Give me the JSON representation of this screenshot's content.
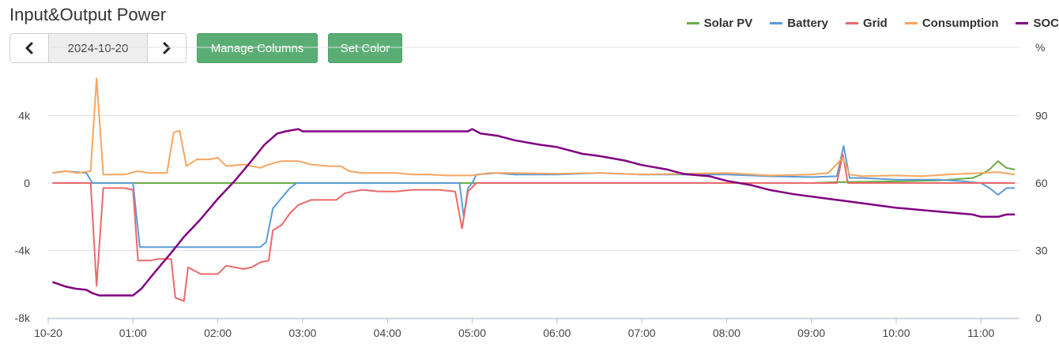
{
  "header": {
    "title": "Input&Output Power",
    "date": "2024-10-20",
    "manage_columns_label": "Manage Columns",
    "set_color_label": "Set Color"
  },
  "chart_data": {
    "type": "line",
    "title": "Input&Output Power",
    "legend_position": "top-right",
    "grid": true,
    "y_left": {
      "unit": "",
      "ylim": [
        -8000,
        6000
      ],
      "ticks": [
        "4k",
        "0",
        "-4k",
        "-8k"
      ],
      "tick_values": [
        4000,
        0,
        -4000,
        -8000
      ]
    },
    "y_right": {
      "unit": "%",
      "ylim": [
        0,
        120
      ],
      "ticks": [
        "90",
        "60",
        "30",
        "0"
      ],
      "tick_values": [
        90,
        60,
        30,
        0
      ]
    },
    "x": {
      "xlim": [
        0,
        11.65
      ],
      "ticks": [
        "10-20",
        "01:00",
        "02:00",
        "03:00",
        "04:00",
        "05:00",
        "06:00",
        "07:00",
        "08:00",
        "09:00",
        "10:00",
        "11:00"
      ],
      "tick_values": [
        0,
        1,
        2,
        3,
        4,
        5,
        6,
        7,
        8,
        9,
        10,
        11
      ]
    },
    "series": [
      {
        "name": "Solar PV",
        "color": "#6aaa47",
        "axis": "left",
        "points": [
          [
            0.05,
            0
          ],
          [
            9.0,
            0
          ],
          [
            9.3,
            50
          ],
          [
            10.0,
            100
          ],
          [
            10.5,
            150
          ],
          [
            10.9,
            300
          ],
          [
            11.0,
            500
          ],
          [
            11.1,
            800
          ],
          [
            11.2,
            1300
          ],
          [
            11.3,
            900
          ],
          [
            11.4,
            800
          ]
        ]
      },
      {
        "name": "Battery",
        "color": "#5b9bd5",
        "axis": "left",
        "points": [
          [
            0.05,
            600
          ],
          [
            0.2,
            700
          ],
          [
            0.45,
            600
          ],
          [
            0.52,
            0
          ],
          [
            1.0,
            0
          ],
          [
            1.08,
            -3800
          ],
          [
            1.5,
            -3800
          ],
          [
            2.0,
            -3800
          ],
          [
            2.5,
            -3800
          ],
          [
            2.57,
            -3500
          ],
          [
            2.65,
            -1500
          ],
          [
            2.75,
            -900
          ],
          [
            2.85,
            -300
          ],
          [
            2.93,
            0
          ],
          [
            3.5,
            0
          ],
          [
            4.0,
            0
          ],
          [
            4.5,
            0
          ],
          [
            4.85,
            0
          ],
          [
            4.9,
            -2000
          ],
          [
            4.95,
            -300
          ],
          [
            5.0,
            0
          ],
          [
            5.05,
            500
          ],
          [
            5.3,
            600
          ],
          [
            5.5,
            500
          ],
          [
            6.0,
            500
          ],
          [
            6.5,
            600
          ],
          [
            7.0,
            500
          ],
          [
            7.5,
            500
          ],
          [
            8.0,
            500
          ],
          [
            8.5,
            400
          ],
          [
            9.0,
            350
          ],
          [
            9.3,
            400
          ],
          [
            9.38,
            2200
          ],
          [
            9.45,
            300
          ],
          [
            9.6,
            300
          ],
          [
            10.0,
            200
          ],
          [
            10.5,
            200
          ],
          [
            10.8,
            100
          ],
          [
            11.0,
            0
          ],
          [
            11.1,
            -300
          ],
          [
            11.2,
            -700
          ],
          [
            11.3,
            -300
          ],
          [
            11.4,
            -300
          ]
        ]
      },
      {
        "name": "Grid",
        "color": "#e96a6a",
        "axis": "left",
        "points": [
          [
            0.05,
            0
          ],
          [
            0.5,
            0
          ],
          [
            0.57,
            -6100
          ],
          [
            0.65,
            -300
          ],
          [
            0.9,
            -300
          ],
          [
            1.0,
            -400
          ],
          [
            1.06,
            -4600
          ],
          [
            1.2,
            -4600
          ],
          [
            1.3,
            -4500
          ],
          [
            1.45,
            -4500
          ],
          [
            1.5,
            -6800
          ],
          [
            1.6,
            -7000
          ],
          [
            1.65,
            -5000
          ],
          [
            1.8,
            -5400
          ],
          [
            2.0,
            -5400
          ],
          [
            2.1,
            -4900
          ],
          [
            2.3,
            -5100
          ],
          [
            2.4,
            -5000
          ],
          [
            2.5,
            -4700
          ],
          [
            2.6,
            -4600
          ],
          [
            2.65,
            -2800
          ],
          [
            2.75,
            -2500
          ],
          [
            2.85,
            -1800
          ],
          [
            2.95,
            -1300
          ],
          [
            3.1,
            -1000
          ],
          [
            3.3,
            -1000
          ],
          [
            3.4,
            -1000
          ],
          [
            3.5,
            -600
          ],
          [
            3.7,
            -400
          ],
          [
            3.9,
            -500
          ],
          [
            4.1,
            -500
          ],
          [
            4.3,
            -400
          ],
          [
            4.6,
            -400
          ],
          [
            4.8,
            -500
          ],
          [
            4.88,
            -2700
          ],
          [
            4.95,
            -500
          ],
          [
            5.05,
            0
          ],
          [
            6.0,
            0
          ],
          [
            7.0,
            0
          ],
          [
            8.0,
            0
          ],
          [
            9.0,
            0
          ],
          [
            9.3,
            0
          ],
          [
            9.37,
            1700
          ],
          [
            9.43,
            0
          ],
          [
            10.0,
            0
          ],
          [
            11.0,
            0
          ],
          [
            11.4,
            0
          ]
        ]
      },
      {
        "name": "Consumption",
        "color": "#f7a560",
        "axis": "left",
        "points": [
          [
            0.05,
            600
          ],
          [
            0.2,
            700
          ],
          [
            0.35,
            600
          ],
          [
            0.5,
            700
          ],
          [
            0.57,
            6200
          ],
          [
            0.65,
            500
          ],
          [
            0.9,
            500
          ],
          [
            1.05,
            700
          ],
          [
            1.2,
            600
          ],
          [
            1.4,
            600
          ],
          [
            1.48,
            3000
          ],
          [
            1.55,
            3100
          ],
          [
            1.63,
            1000
          ],
          [
            1.75,
            1400
          ],
          [
            1.9,
            1400
          ],
          [
            2.0,
            1500
          ],
          [
            2.1,
            1000
          ],
          [
            2.3,
            1100
          ],
          [
            2.5,
            900
          ],
          [
            2.6,
            1100
          ],
          [
            2.75,
            1300
          ],
          [
            2.95,
            1300
          ],
          [
            3.1,
            1100
          ],
          [
            3.3,
            1000
          ],
          [
            3.45,
            1000
          ],
          [
            3.55,
            700
          ],
          [
            3.7,
            600
          ],
          [
            3.9,
            600
          ],
          [
            4.1,
            600
          ],
          [
            4.3,
            500
          ],
          [
            4.5,
            500
          ],
          [
            4.7,
            450
          ],
          [
            4.9,
            450
          ],
          [
            5.0,
            450
          ],
          [
            5.2,
            600
          ],
          [
            5.5,
            600
          ],
          [
            6.0,
            550
          ],
          [
            6.5,
            600
          ],
          [
            7.0,
            500
          ],
          [
            7.5,
            550
          ],
          [
            8.0,
            600
          ],
          [
            8.5,
            450
          ],
          [
            9.0,
            500
          ],
          [
            9.2,
            600
          ],
          [
            9.37,
            1500
          ],
          [
            9.45,
            500
          ],
          [
            9.6,
            400
          ],
          [
            10.0,
            450
          ],
          [
            10.3,
            400
          ],
          [
            10.6,
            500
          ],
          [
            11.0,
            600
          ],
          [
            11.2,
            650
          ],
          [
            11.4,
            500
          ]
        ]
      },
      {
        "name": "SOC",
        "color": "#800080",
        "axis": "right",
        "points": [
          [
            0.05,
            16
          ],
          [
            0.2,
            14
          ],
          [
            0.32,
            13
          ],
          [
            0.45,
            12.5
          ],
          [
            0.52,
            11
          ],
          [
            0.6,
            10
          ],
          [
            0.7,
            10
          ],
          [
            1.0,
            10
          ],
          [
            1.1,
            13
          ],
          [
            1.25,
            20
          ],
          [
            1.45,
            29
          ],
          [
            1.6,
            36
          ],
          [
            1.8,
            44
          ],
          [
            2.0,
            53
          ],
          [
            2.2,
            61
          ],
          [
            2.4,
            70
          ],
          [
            2.55,
            77
          ],
          [
            2.7,
            82
          ],
          [
            2.8,
            83
          ],
          [
            2.95,
            84
          ],
          [
            3.0,
            83
          ],
          [
            3.5,
            83
          ],
          [
            4.0,
            83
          ],
          [
            4.5,
            83
          ],
          [
            4.95,
            83
          ],
          [
            5.0,
            84
          ],
          [
            5.1,
            82
          ],
          [
            5.3,
            81
          ],
          [
            5.5,
            79
          ],
          [
            5.8,
            77
          ],
          [
            6.0,
            76
          ],
          [
            6.3,
            73
          ],
          [
            6.5,
            72
          ],
          [
            6.8,
            70
          ],
          [
            7.0,
            68
          ],
          [
            7.3,
            66
          ],
          [
            7.5,
            64
          ],
          [
            7.8,
            63
          ],
          [
            8.0,
            61
          ],
          [
            8.3,
            59
          ],
          [
            8.5,
            57
          ],
          [
            8.8,
            55
          ],
          [
            9.0,
            54
          ],
          [
            9.2,
            53
          ],
          [
            9.4,
            52
          ],
          [
            9.6,
            51
          ],
          [
            9.8,
            50
          ],
          [
            10.0,
            49
          ],
          [
            10.3,
            48
          ],
          [
            10.6,
            47
          ],
          [
            10.9,
            46
          ],
          [
            11.0,
            45
          ],
          [
            11.2,
            45
          ],
          [
            11.3,
            46
          ],
          [
            11.4,
            46
          ]
        ]
      }
    ]
  }
}
